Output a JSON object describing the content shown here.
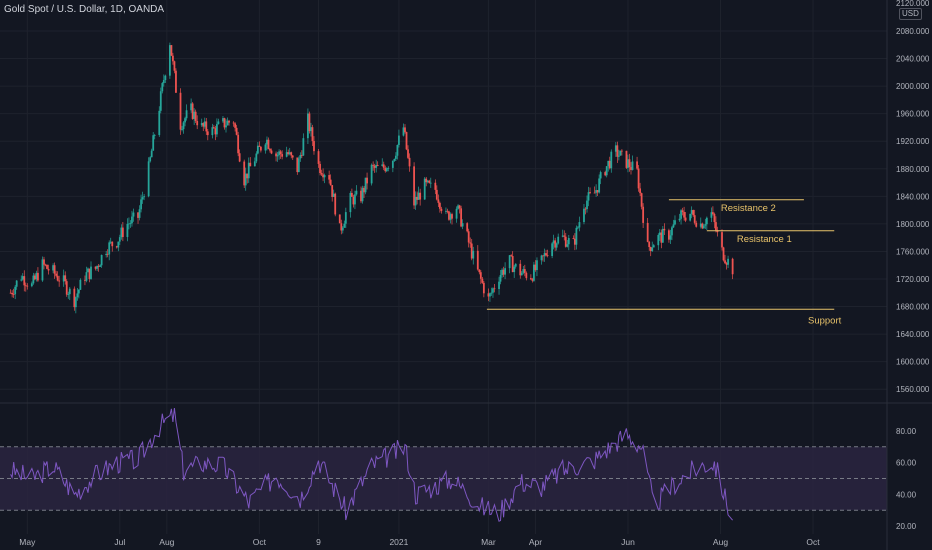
{
  "header": {
    "symbol_title": "Gold Spot / U.S. Dollar, 1D, OANDA",
    "currency": "USD"
  },
  "colors": {
    "background": "#131722",
    "grid": "#1e222d",
    "up": "#26a69a",
    "down": "#ef5350",
    "level_line": "#e8c36a",
    "rsi_line": "#7e57c2",
    "rsi_band": "#2a2540"
  },
  "chart_data": [
    {
      "type": "candlestick",
      "title": "Gold Spot / U.S. Dollar, 1D, OANDA",
      "ylim": [
        1540,
        2125
      ],
      "y_ticks": [
        1560,
        1600,
        1640,
        1680,
        1720,
        1760,
        1800,
        1840,
        1880,
        1920,
        1960,
        2000,
        2040,
        2080
      ],
      "y_tick_labels": [
        "1560.000",
        "1600.000",
        "1640.000",
        "1680.000",
        "1720.000",
        "1760.000",
        "1800.000",
        "1840.000",
        "1880.000",
        "1920.000",
        "1960.000",
        "2000.000",
        "2040.000",
        "2080.000"
      ],
      "top_partial_label": "2120.000",
      "x_labels": [
        "May",
        "Jul",
        "Aug",
        "Oct",
        "9",
        "2021",
        "Mar",
        "Apr",
        "Jun",
        "Aug",
        "Oct"
      ],
      "price_path": [
        [
          "2020-04-20",
          1700
        ],
        [
          "2020-04-27",
          1725
        ],
        [
          "2020-05-04",
          1710
        ],
        [
          "2020-05-11",
          1740
        ],
        [
          "2020-05-18",
          1730
        ],
        [
          "2020-05-25",
          1715
        ],
        [
          "2020-06-01",
          1690
        ],
        [
          "2020-06-08",
          1725
        ],
        [
          "2020-06-15",
          1735
        ],
        [
          "2020-06-22",
          1765
        ],
        [
          "2020-06-29",
          1775
        ],
        [
          "2020-07-06",
          1800
        ],
        [
          "2020-07-13",
          1810
        ],
        [
          "2020-07-20",
          1880
        ],
        [
          "2020-07-27",
          1970
        ],
        [
          "2020-08-03",
          2065
        ],
        [
          "2020-08-10",
          1945
        ],
        [
          "2020-08-17",
          1965
        ],
        [
          "2020-08-24",
          1940
        ],
        [
          "2020-08-31",
          1935
        ],
        [
          "2020-09-07",
          1945
        ],
        [
          "2020-09-14",
          1950
        ],
        [
          "2020-09-21",
          1865
        ],
        [
          "2020-09-28",
          1895
        ],
        [
          "2020-10-05",
          1925
        ],
        [
          "2020-10-12",
          1900
        ],
        [
          "2020-10-19",
          1905
        ],
        [
          "2020-10-26",
          1880
        ],
        [
          "2020-11-02",
          1950
        ],
        [
          "2020-11-09",
          1885
        ],
        [
          "2020-11-16",
          1870
        ],
        [
          "2020-11-23",
          1790
        ],
        [
          "2020-11-30",
          1835
        ],
        [
          "2020-12-07",
          1840
        ],
        [
          "2020-12-14",
          1880
        ],
        [
          "2020-12-21",
          1880
        ],
        [
          "2020-12-28",
          1895
        ],
        [
          "2021-01-04",
          1940
        ],
        [
          "2021-01-11",
          1830
        ],
        [
          "2021-01-18",
          1855
        ],
        [
          "2021-01-25",
          1850
        ],
        [
          "2021-02-01",
          1810
        ],
        [
          "2021-02-08",
          1825
        ],
        [
          "2021-02-15",
          1780
        ],
        [
          "2021-02-22",
          1730
        ],
        [
          "2021-03-01",
          1690
        ],
        [
          "2021-03-08",
          1725
        ],
        [
          "2021-03-15",
          1745
        ],
        [
          "2021-03-22",
          1730
        ],
        [
          "2021-03-29",
          1725
        ],
        [
          "2021-04-05",
          1745
        ],
        [
          "2021-04-12",
          1775
        ],
        [
          "2021-04-19",
          1780
        ],
        [
          "2021-04-26",
          1770
        ],
        [
          "2021-05-03",
          1830
        ],
        [
          "2021-05-10",
          1845
        ],
        [
          "2021-05-17",
          1880
        ],
        [
          "2021-05-24",
          1905
        ],
        [
          "2021-05-31",
          1890
        ],
        [
          "2021-06-07",
          1875
        ],
        [
          "2021-06-14",
          1765
        ],
        [
          "2021-06-21",
          1780
        ],
        [
          "2021-06-28",
          1785
        ],
        [
          "2021-07-05",
          1810
        ],
        [
          "2021-07-12",
          1815
        ],
        [
          "2021-07-19",
          1800
        ],
        [
          "2021-07-26",
          1815
        ],
        [
          "2021-08-02",
          1760
        ],
        [
          "2021-08-09",
          1735
        ]
      ],
      "annotations": [
        {
          "label": "Resistance 2",
          "y": 1835,
          "x_start": "2021-06-28",
          "x_end": "2021-09-25"
        },
        {
          "label": "Resistance 1",
          "y": 1790,
          "x_start": "2021-07-23",
          "x_end": "2021-10-15"
        },
        {
          "label": "Support",
          "y": 1676,
          "x_start": "2021-02-28",
          "x_end": "2021-10-15"
        }
      ]
    },
    {
      "type": "line",
      "ylim": [
        15,
        97
      ],
      "y_ticks": [
        20,
        40,
        60,
        80
      ],
      "y_tick_labels": [
        "20.00",
        "40.00",
        "60.00",
        "80.00"
      ],
      "bands": [
        70,
        50,
        30
      ],
      "rsi_path": [
        [
          "2020-04-20",
          55
        ],
        [
          "2020-05-04",
          50
        ],
        [
          "2020-05-18",
          58
        ],
        [
          "2020-06-01",
          40
        ],
        [
          "2020-06-15",
          52
        ],
        [
          "2020-06-29",
          60
        ],
        [
          "2020-07-13",
          62
        ],
        [
          "2020-07-27",
          83
        ],
        [
          "2020-08-06",
          90
        ],
        [
          "2020-08-12",
          55
        ],
        [
          "2020-08-24",
          60
        ],
        [
          "2020-09-07",
          58
        ],
        [
          "2020-09-24",
          35
        ],
        [
          "2020-10-12",
          52
        ],
        [
          "2020-10-28",
          38
        ],
        [
          "2020-11-09",
          62
        ],
        [
          "2020-11-27",
          30
        ],
        [
          "2020-12-14",
          58
        ],
        [
          "2021-01-05",
          70
        ],
        [
          "2021-01-12",
          40
        ],
        [
          "2021-02-05",
          50
        ],
        [
          "2021-02-25",
          32
        ],
        [
          "2021-03-08",
          28
        ],
        [
          "2021-03-22",
          48
        ],
        [
          "2021-04-05",
          45
        ],
        [
          "2021-04-19",
          55
        ],
        [
          "2021-05-10",
          62
        ],
        [
          "2021-05-31",
          78
        ],
        [
          "2021-06-10",
          70
        ],
        [
          "2021-06-18",
          33
        ],
        [
          "2021-07-05",
          50
        ],
        [
          "2021-07-19",
          58
        ],
        [
          "2021-07-28",
          60
        ],
        [
          "2021-08-05",
          35
        ],
        [
          "2021-08-09",
          25
        ]
      ]
    }
  ]
}
